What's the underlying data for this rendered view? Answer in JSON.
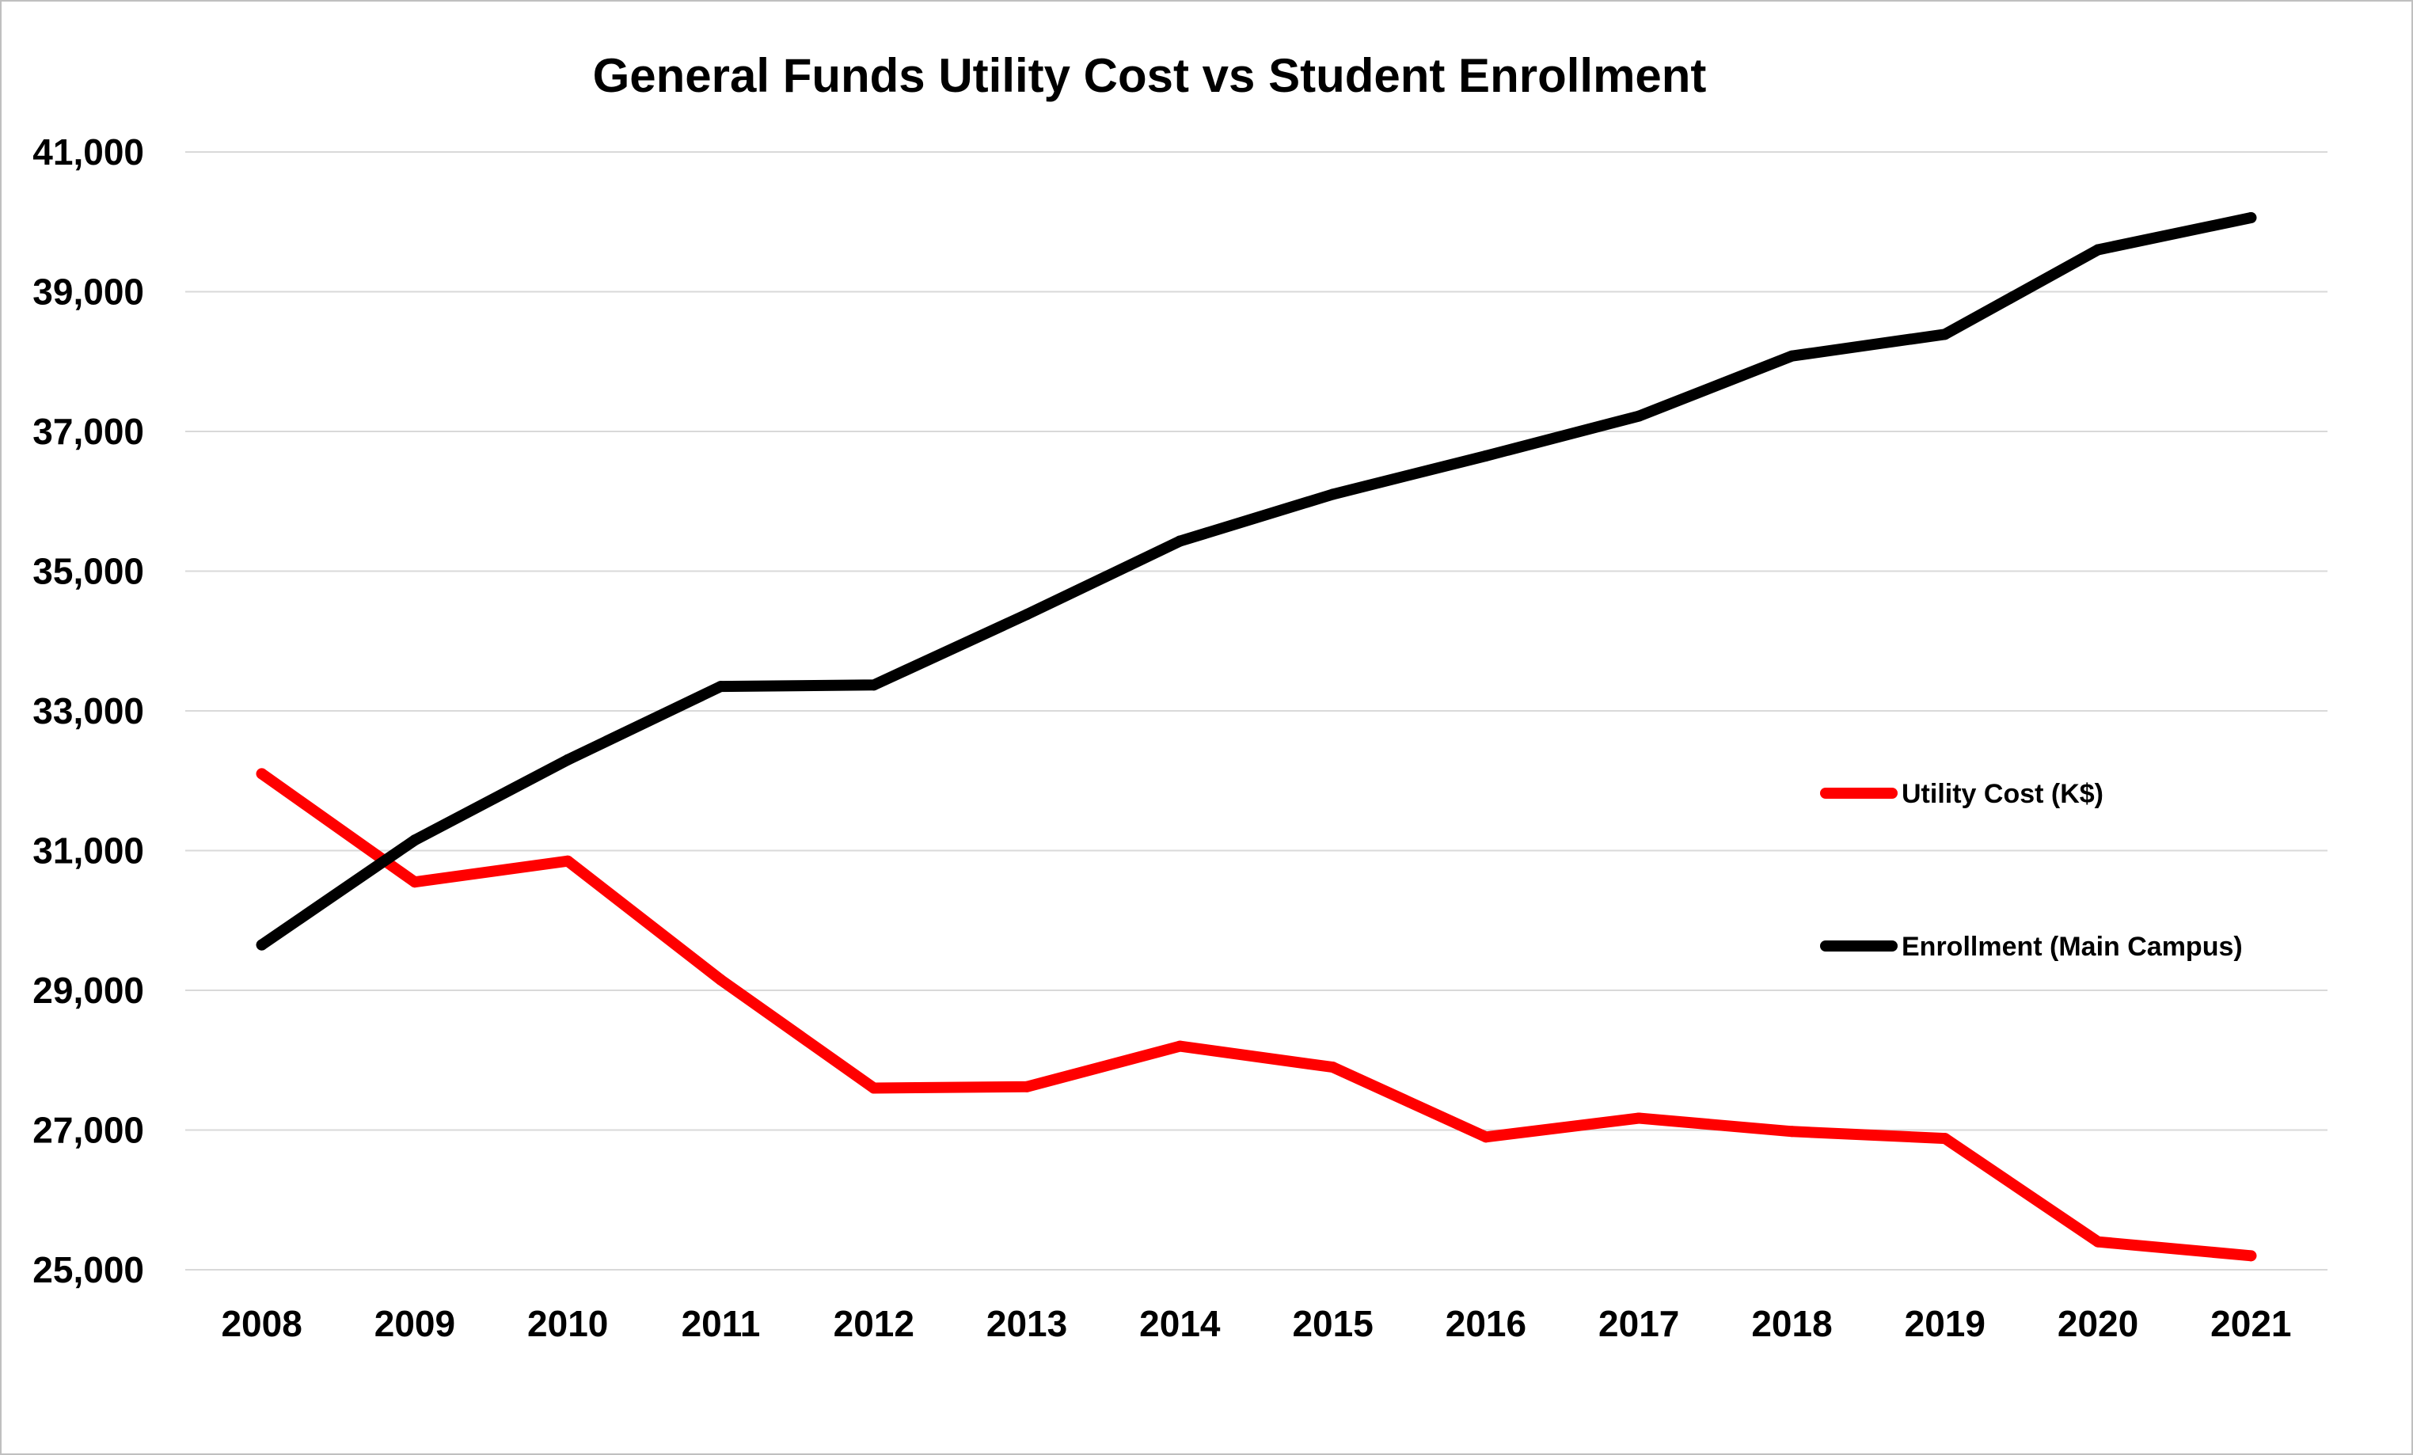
{
  "chart_data": {
    "type": "line",
    "title": "General Funds Utility Cost vs Student Enrollment",
    "xlabel": "",
    "ylabel": "",
    "categories": [
      "2008",
      "2009",
      "2010",
      "2011",
      "2012",
      "2013",
      "2014",
      "2015",
      "2016",
      "2017",
      "2018",
      "2019",
      "2020",
      "2021"
    ],
    "ylim": [
      25000,
      41000
    ],
    "yticks": [
      25000,
      27000,
      29000,
      31000,
      33000,
      35000,
      37000,
      39000,
      41000
    ],
    "ytick_labels": [
      "25,000",
      "27,000",
      "29,000",
      "31,000",
      "33,000",
      "35,000",
      "37,000",
      "39,000",
      "41,000"
    ],
    "grid": true,
    "legend_position": "right",
    "series": [
      {
        "name": "Utility Cost (K$)",
        "color": "#ff0000",
        "values": [
          32100,
          30550,
          30850,
          29150,
          27600,
          27620,
          28200,
          27900,
          26900,
          27170,
          26980,
          26880,
          25400,
          25200
        ]
      },
      {
        "name": "Enrollment (Main Campus)",
        "color": "#000000",
        "values": [
          29650,
          31150,
          32300,
          33350,
          33370,
          34380,
          35430,
          36100,
          36650,
          37220,
          38080,
          38390,
          39600,
          40060
        ]
      }
    ]
  }
}
